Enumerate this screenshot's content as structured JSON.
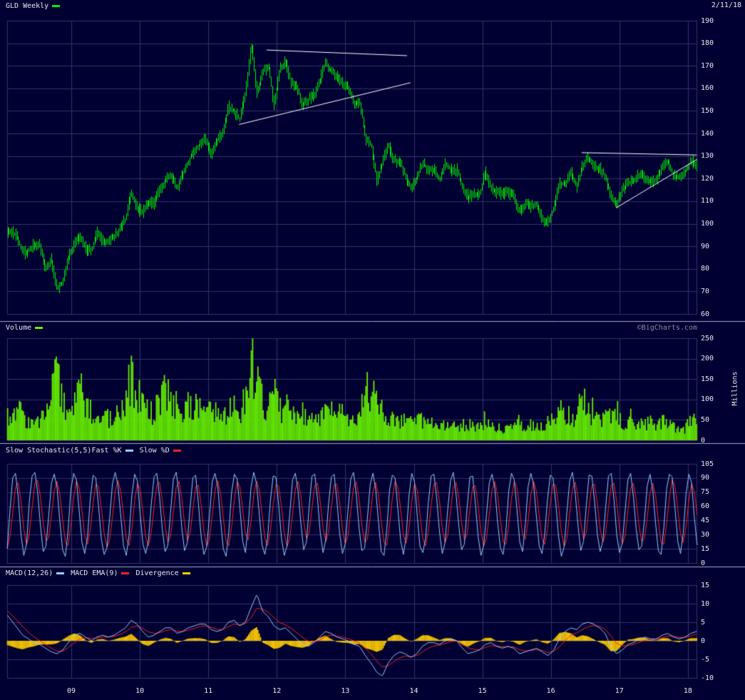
{
  "meta": {
    "date_label": "2/11/18",
    "watermark": "©BigCharts.com",
    "background": "#000033",
    "grid_color": "#333366",
    "separator_color": "#aaaacc",
    "text_color": "#e8e8ee"
  },
  "x_axis": {
    "labels": [
      "09",
      "10",
      "11",
      "12",
      "13",
      "14",
      "15",
      "16",
      "17",
      "18"
    ],
    "years": [
      2009,
      2010,
      2011,
      2012,
      2013,
      2014,
      2015,
      2016,
      2017,
      2018
    ]
  },
  "chart_data": [
    {
      "id": "price",
      "type": "ohlc-bar",
      "title": "GLD Weekly",
      "header": [
        {
          "text": "GLD Weekly",
          "swatch": "#00ee00"
        }
      ],
      "bar_color": "#00ee00",
      "trendline_color": "#ffffff",
      "ylim": [
        60,
        190
      ],
      "yticks": [
        60,
        70,
        80,
        90,
        100,
        110,
        120,
        130,
        140,
        150,
        160,
        170,
        180,
        190
      ],
      "x_start": 2008.0417,
      "x_step": 0.083333,
      "monthly_closes": [
        95,
        97,
        94,
        87,
        88,
        91,
        90,
        80,
        84,
        71,
        74,
        85,
        91,
        94,
        89,
        88,
        96,
        92,
        93,
        94,
        98,
        102,
        114,
        107,
        105,
        109,
        109,
        115,
        119,
        122,
        115,
        122,
        128,
        132,
        135,
        138,
        130,
        137,
        140,
        152,
        150,
        146,
        158,
        180,
        157,
        167,
        170,
        152,
        169,
        172,
        162,
        161,
        152,
        155,
        157,
        163,
        172,
        167,
        166,
        162,
        161,
        153,
        154,
        138,
        135,
        119,
        127,
        135,
        128,
        128,
        121,
        116,
        120,
        127,
        124,
        124,
        120,
        127,
        124,
        124,
        116,
        112,
        113,
        113,
        123,
        116,
        114,
        113,
        114,
        112,
        105,
        109,
        107,
        109,
        102,
        101,
        107,
        118,
        117,
        123,
        116,
        126,
        129,
        125,
        125,
        121,
        112,
        109,
        115,
        118,
        119,
        122,
        120,
        118,
        120,
        125,
        127,
        121,
        121,
        123,
        128,
        126
      ],
      "trendlines": [
        {
          "x1": 2011.85,
          "y1": 177.0,
          "x2": 2013.9,
          "y2": 174.5
        },
        {
          "x1": 2011.45,
          "y1": 144.0,
          "x2": 2013.95,
          "y2": 162.5
        },
        {
          "x1": 2016.45,
          "y1": 131.5,
          "x2": 2018.13,
          "y2": 130.5
        },
        {
          "x1": 2016.95,
          "y1": 107.0,
          "x2": 2018.13,
          "y2": 128.5
        }
      ]
    },
    {
      "id": "volume",
      "type": "bar",
      "title": "Volume",
      "header": [
        {
          "text": "Volume",
          "swatch": "#66ee00"
        }
      ],
      "ylabel": "Millions",
      "bar_color": "#66ee00",
      "ylim": [
        0,
        250
      ],
      "yticks": [
        0,
        50,
        100,
        150,
        200,
        250
      ],
      "x_start": 2008.0417,
      "x_step": 0.083333,
      "monthly_avg_millions": [
        55,
        65,
        95,
        70,
        60,
        50,
        55,
        90,
        160,
        205,
        120,
        85,
        105,
        150,
        110,
        80,
        95,
        70,
        65,
        60,
        85,
        95,
        200,
        90,
        100,
        90,
        80,
        120,
        170,
        110,
        80,
        70,
        90,
        100,
        110,
        90,
        95,
        80,
        75,
        90,
        100,
        80,
        120,
        250,
        190,
        110,
        90,
        135,
        90,
        100,
        80,
        60,
        80,
        60,
        55,
        60,
        90,
        70,
        80,
        75,
        60,
        80,
        70,
        205,
        130,
        130,
        80,
        70,
        60,
        55,
        60,
        55,
        60,
        55,
        50,
        45,
        40,
        45,
        40,
        40,
        50,
        45,
        40,
        40,
        45,
        40,
        40,
        35,
        40,
        40,
        55,
        45,
        45,
        40,
        45,
        50,
        70,
        90,
        75,
        70,
        65,
        130,
        90,
        70,
        75,
        60,
        85,
        65,
        55,
        50,
        50,
        45,
        50,
        55,
        40,
        55,
        45,
        40,
        40,
        35,
        55,
        60
      ]
    },
    {
      "id": "stochastic",
      "type": "line",
      "title": "Slow Stochastic(5,5)",
      "header": [
        {
          "text": "Slow Stochastic(5,5)"
        },
        {
          "text": "Fast %K",
          "swatch": "#99ccff"
        },
        {
          "text": "Slow %D",
          "swatch": "#ff2222"
        }
      ],
      "k_color": "#99ccff",
      "d_color": "#ff2222",
      "d_sma_period": 3,
      "ylim": [
        0,
        105
      ],
      "yticks": [
        0,
        15,
        30,
        45,
        60,
        75,
        90,
        105
      ],
      "k_values": [
        15,
        55,
        90,
        95,
        70,
        30,
        8,
        20,
        65,
        92,
        96,
        75,
        40,
        12,
        18,
        50,
        85,
        94,
        80,
        45,
        14,
        7,
        35,
        78,
        95,
        88,
        55,
        22,
        10,
        28,
        68,
        93,
        90,
        60,
        25,
        9,
        16,
        48,
        84,
        96,
        82,
        50,
        18,
        8,
        30,
        72,
        94,
        87,
        52,
        20,
        10,
        24,
        62,
        91,
        95,
        70,
        35,
        12,
        19,
        55,
        89,
        96,
        74,
        38,
        13,
        21,
        58,
        90,
        93,
        64,
        28,
        9,
        17,
        49,
        86,
        95,
        81,
        46,
        15,
        7,
        33,
        75,
        94,
        89,
        58,
        23,
        11,
        40,
        80,
        96,
        84,
        51,
        19,
        9,
        27,
        66,
        92,
        91,
        61,
        26,
        8,
        18,
        53,
        88,
        95,
        76,
        42,
        14,
        22,
        60,
        92,
        94,
        68,
        32,
        11,
        25,
        63,
        91,
        94,
        66,
        31,
        10,
        20,
        56,
        89,
        96,
        72,
        37,
        13,
        16,
        47,
        83,
        95,
        78,
        44,
        12,
        8,
        36,
        77,
        93,
        90,
        57,
        24,
        9,
        29,
        71,
        95,
        86,
        50,
        17,
        11,
        26,
        64,
        92,
        94,
        69,
        34,
        10,
        21,
        57,
        87,
        96,
        73,
        39,
        14,
        20,
        59,
        91,
        92,
        62,
        27,
        8,
        19,
        52,
        85,
        94,
        79,
        43,
        16,
        9,
        34,
        76,
        95,
        88,
        56,
        22,
        12,
        41,
        81,
        95,
        83,
        49,
        18,
        10,
        31,
        67,
        93,
        90,
        63,
        28,
        7,
        17,
        54,
        87,
        96,
        74,
        40,
        13,
        23,
        61,
        93,
        92,
        65,
        30,
        12,
        24,
        60,
        92,
        95,
        67,
        29,
        11,
        21,
        55,
        88,
        95,
        70,
        36,
        14,
        18,
        46,
        82,
        94,
        77,
        42,
        13,
        9,
        38,
        79,
        94,
        91,
        58,
        23,
        10,
        32,
        73,
        94,
        85,
        48,
        19
      ]
    },
    {
      "id": "macd",
      "type": "line-histogram",
      "title": "MACD(12,26)",
      "header": [
        {
          "text": "MACD(12,26)",
          "swatch": "#99ccff"
        },
        {
          "text": "MACD EMA(9)",
          "swatch": "#ff2222"
        },
        {
          "text": "Divergence",
          "swatch": "#ffcc00"
        }
      ],
      "macd_color": "#99ccff",
      "signal_color": "#ff2222",
      "histogram_color": "#ffcc00",
      "histogram_is_macd_minus_signal": true,
      "ylim": [
        -10,
        15
      ],
      "yticks": [
        -10,
        -5,
        0,
        5,
        10,
        15
      ],
      "x_start": 2008.0417,
      "x_step": 0.083333,
      "macd": [
        7.5,
        5.5,
        3.5,
        1.5,
        0.5,
        -0.5,
        -1,
        -2,
        -3,
        -3.5,
        -2.5,
        -0.5,
        1.5,
        2,
        1,
        0,
        1,
        1.5,
        1,
        1.5,
        2.5,
        3.5,
        5.5,
        4.5,
        2.5,
        1,
        1.5,
        2.5,
        3.5,
        3.5,
        2,
        2.5,
        3.5,
        4,
        4.5,
        4.5,
        3,
        2.5,
        3,
        5,
        5.5,
        4,
        5,
        9,
        12.5,
        8,
        6.5,
        4,
        3,
        3.5,
        2,
        0.5,
        -1,
        -1.5,
        -0.5,
        1,
        2.5,
        2,
        1,
        0.5,
        0,
        -1,
        -1.5,
        -4,
        -6,
        -8.5,
        -9.5,
        -6,
        -4,
        -3,
        -3.5,
        -4.5,
        -3.5,
        -1.5,
        -0.5,
        -0.5,
        -1,
        0,
        0.5,
        0,
        -2,
        -3.5,
        -3,
        -2.5,
        -1,
        -0.5,
        -1.5,
        -2,
        -1.5,
        -2,
        -3.5,
        -3,
        -2.5,
        -2,
        -3,
        -4,
        -2.5,
        0.5,
        2.5,
        3.5,
        3,
        4.5,
        5,
        4.5,
        3.5,
        2,
        -1.5,
        -3.5,
        -2.5,
        -1,
        -0.5,
        0.5,
        1,
        0.5,
        0.5,
        1.5,
        2,
        1,
        0.5,
        1,
        2,
        2.5
      ],
      "signal": [
        8.5,
        7,
        5.5,
        3.8,
        2.3,
        1,
        0,
        -1,
        -2,
        -2.8,
        -2.8,
        -1.8,
        -0.5,
        0.5,
        0.8,
        0.6,
        0.7,
        1,
        1,
        1.2,
        1.7,
        2.4,
        3.6,
        4,
        3.4,
        2.4,
        2,
        2.2,
        2.7,
        3,
        2.6,
        2.5,
        2.9,
        3.3,
        3.8,
        4.1,
        3.6,
        3.1,
        3,
        3.8,
        4.5,
        4.3,
        4.6,
        6.3,
        8.8,
        8.5,
        7.7,
        6.2,
        4.9,
        4.3,
        3.4,
        2.2,
        0.9,
        -0.1,
        -0.3,
        0.2,
        1.1,
        1.5,
        1.3,
        1,
        0.6,
        0,
        -0.6,
        -2,
        -3.6,
        -5.5,
        -7.1,
        -6.7,
        -5.6,
        -4.6,
        -4.1,
        -4.3,
        -4,
        -3,
        -2,
        -1.4,
        -1.2,
        -0.7,
        -0.2,
        -0.1,
        -0.9,
        -1.9,
        -2.3,
        -2.4,
        -1.8,
        -1.3,
        -1.4,
        -1.6,
        -1.6,
        -1.7,
        -2.4,
        -2.7,
        -2.6,
        -2.4,
        -2.6,
        -3.2,
        -2.9,
        -1.6,
        0.1,
        1.5,
        2.1,
        3,
        3.8,
        4.1,
        3.9,
        3.1,
        1.3,
        -0.7,
        -1.4,
        -1.3,
        -1,
        -0.4,
        0.2,
        0.3,
        0.4,
        0.8,
        1.3,
        1.2,
        0.9,
        0.9,
        1.3,
        1.8
      ]
    }
  ]
}
